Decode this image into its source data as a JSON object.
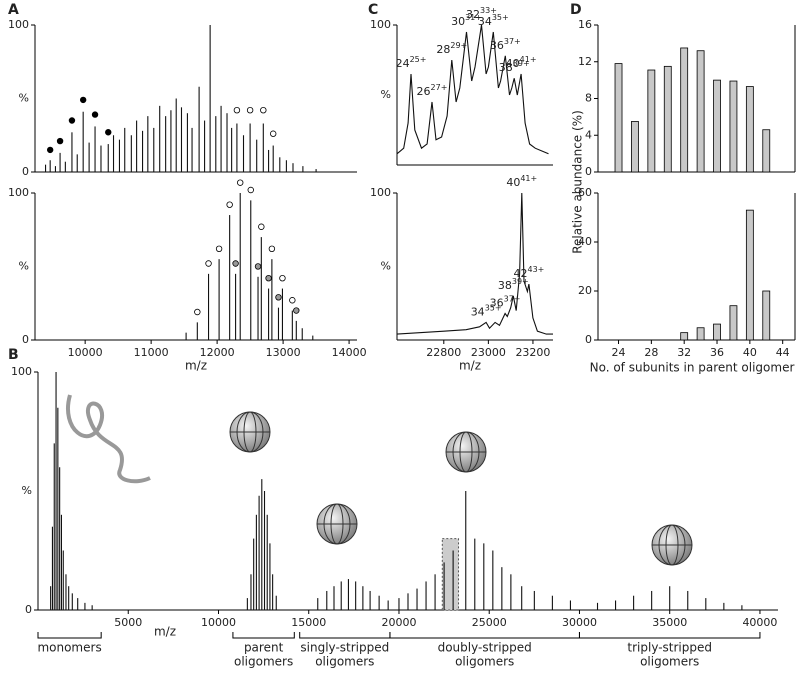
{
  "chart_data": [
    {
      "type": "spectrum",
      "panel": "A",
      "ylabel": "%",
      "xlim": [
        9240,
        14120
      ],
      "ylim": [
        0,
        100
      ],
      "yticks": [
        0,
        100
      ],
      "x": [
        9400,
        9470,
        9550,
        9620,
        9700,
        9800,
        9880,
        9970,
        10060,
        10150,
        10240,
        10350,
        10430,
        10520,
        10600,
        10700,
        10780,
        10870,
        10950,
        11040,
        11130,
        11220,
        11300,
        11380,
        11460,
        11550,
        11620,
        11727,
        11810,
        11894,
        11980,
        12060,
        12150,
        12220,
        12300,
        12400,
        12500,
        12600,
        12700,
        12780,
        12850,
        12950,
        13050,
        13150,
        13300,
        13500
      ],
      "values": [
        5,
        8,
        4,
        13,
        7,
        27,
        12,
        41,
        20,
        31,
        18,
        19,
        25,
        22,
        30,
        25,
        35,
        28,
        38,
        30,
        45,
        38,
        42,
        50,
        44,
        40,
        30,
        58,
        35,
        100,
        38,
        45,
        40,
        30,
        33,
        25,
        33,
        22,
        33,
        15,
        18,
        10,
        8,
        6,
        4,
        2
      ],
      "markers": [
        {
          "color": "#000000",
          "x": [
            9470,
            9620,
            9800,
            9970,
            10150,
            10350
          ],
          "values": [
            13,
            19,
            33,
            47,
            37,
            25
          ]
        },
        {
          "color": "#ffffff",
          "x": [
            12300,
            12500,
            12700,
            12850
          ],
          "values": [
            40,
            40,
            40,
            24
          ]
        }
      ]
    },
    {
      "type": "spectrum",
      "ylabel": "%",
      "xlabel": "m/z",
      "xlim": [
        9240,
        14120
      ],
      "ylim": [
        0,
        100
      ],
      "yticks": [
        0,
        100
      ],
      "xticks": [
        10000,
        11000,
        12000,
        13000,
        14000
      ],
      "x": [
        11530,
        11700,
        11870,
        12030,
        12190,
        12280,
        12350,
        12510,
        12620,
        12670,
        12780,
        12830,
        12930,
        12990,
        13140,
        13200,
        13290,
        13450
      ],
      "values": [
        5,
        12,
        45,
        55,
        85,
        45,
        100,
        95,
        43,
        70,
        35,
        55,
        22,
        35,
        20,
        13,
        8,
        3
      ],
      "markers": [
        {
          "color": "#ffffff",
          "x": [
            11700,
            11870,
            12030,
            12190,
            12350,
            12510,
            12670,
            12830,
            12990,
            13140
          ],
          "values": [
            17,
            50,
            60,
            90,
            105,
            100,
            75,
            60,
            40,
            25
          ]
        },
        {
          "color": "#999999",
          "x": [
            12280,
            12620,
            12780,
            12930,
            13200
          ],
          "values": [
            50,
            48,
            40,
            27,
            18
          ]
        }
      ]
    },
    {
      "type": "line",
      "panel": "C",
      "ylabel": "%",
      "xlim": [
        22590,
        23290
      ],
      "ylim": [
        0,
        100
      ],
      "yticks": [
        100
      ],
      "x": [
        22590,
        22620,
        22640,
        22653,
        22670,
        22700,
        22725,
        22747,
        22765,
        22790,
        22815,
        22836,
        22855,
        22872,
        22902,
        22925,
        22940,
        22969,
        22990,
        23000,
        23022,
        23045,
        23055,
        23076,
        23095,
        23105,
        23116,
        23130,
        23147,
        23165,
        23185,
        23210,
        23240,
        23270
      ],
      "values": [
        8,
        12,
        30,
        65,
        25,
        12,
        15,
        45,
        18,
        20,
        35,
        75,
        45,
        55,
        95,
        60,
        70,
        100,
        65,
        70,
        95,
        55,
        60,
        78,
        50,
        55,
        62,
        50,
        65,
        30,
        15,
        12,
        10,
        8
      ],
      "labels": [
        {
          "x": 22653,
          "y": 65,
          "base": "24",
          "sup": "25+"
        },
        {
          "x": 22747,
          "y": 45,
          "base": "26",
          "sup": "27+"
        },
        {
          "x": 22836,
          "y": 75,
          "base": "28",
          "sup": "29+"
        },
        {
          "x": 22902,
          "y": 95,
          "base": "30",
          "sup": "31+"
        },
        {
          "x": 22969,
          "y": 100,
          "base": "32",
          "sup": "33+"
        },
        {
          "x": 23022,
          "y": 95,
          "base": "34",
          "sup": "35+"
        },
        {
          "x": 23076,
          "y": 78,
          "base": "36",
          "sup": "37+"
        },
        {
          "x": 23116,
          "y": 62,
          "base": "38",
          "sup": "39+"
        },
        {
          "x": 23147,
          "y": 65,
          "base": "40",
          "sup": "41+"
        }
      ]
    },
    {
      "type": "line",
      "ylabel": "%",
      "xlabel": "m/z",
      "xlim": [
        22590,
        23290
      ],
      "ylim": [
        0,
        100
      ],
      "yticks": [
        100
      ],
      "xticks": [
        22800,
        23000,
        23200
      ],
      "x": [
        22590,
        22700,
        22800,
        22900,
        22960,
        22990,
        23005,
        23030,
        23050,
        23075,
        23085,
        23100,
        23112,
        23125,
        23140,
        23150,
        23160,
        23175,
        23182,
        23200,
        23220,
        23260,
        23290
      ],
      "values": [
        4,
        5,
        6,
        7,
        9,
        12,
        8,
        12,
        10,
        18,
        16,
        22,
        30,
        20,
        45,
        100,
        40,
        33,
        38,
        15,
        6,
        4,
        4
      ],
      "labels": [
        {
          "x": 22990,
          "y": 12,
          "base": "34",
          "sup": "35+"
        },
        {
          "x": 23075,
          "y": 18,
          "base": "36",
          "sup": "37+"
        },
        {
          "x": 23112,
          "y": 30,
          "base": "38",
          "sup": "39+"
        },
        {
          "x": 23150,
          "y": 100,
          "base": "40",
          "sup": "41+"
        },
        {
          "x": 23182,
          "y": 38,
          "base": "42",
          "sup": "43+"
        }
      ]
    },
    {
      "type": "bar",
      "panel": "D",
      "ylabel": "Relative abundance (%)",
      "color": "#c8c8c8",
      "xlim": [
        21.5,
        45.5
      ],
      "ylim": [
        0,
        16
      ],
      "yticks": [
        0,
        4,
        8,
        12,
        16
      ],
      "x": [
        24,
        26,
        28,
        30,
        32,
        34,
        36,
        38,
        40,
        42
      ],
      "values": [
        11.8,
        5.5,
        11.1,
        11.5,
        13.5,
        13.2,
        10,
        9.9,
        9.3,
        4.6
      ]
    },
    {
      "type": "bar",
      "xlabel": "No. of subunits in parent oligomer",
      "color": "#c8c8c8",
      "xlim": [
        21.5,
        45.5
      ],
      "ylim": [
        0,
        60
      ],
      "yticks": [
        0,
        20,
        40,
        60
      ],
      "xticks": [
        24,
        28,
        32,
        36,
        40,
        44
      ],
      "x": [
        24,
        26,
        28,
        30,
        32,
        34,
        36,
        38,
        40,
        42
      ],
      "values": [
        0,
        0,
        0,
        0,
        3,
        5,
        6.5,
        14,
        53,
        20
      ]
    },
    {
      "type": "spectrum",
      "panel": "B",
      "ylabel": "%",
      "xlabel": "m/z",
      "xlim": [
        0,
        41000
      ],
      "ylim": [
        0,
        100
      ],
      "yticks": [
        0,
        100
      ],
      "xticks": [
        5000,
        10000,
        15000,
        20000,
        25000,
        30000,
        35000,
        40000
      ],
      "x": [
        700,
        800,
        900,
        1000,
        1100,
        1200,
        1300,
        1400,
        1550,
        1700,
        1900,
        2200,
        2600,
        3000,
        11600,
        11800,
        11950,
        12100,
        12250,
        12400,
        12550,
        12700,
        12850,
        13000,
        13200,
        15500,
        16000,
        16400,
        16800,
        17200,
        17600,
        18000,
        18400,
        18900,
        19400,
        20000,
        20500,
        21000,
        21500,
        22000,
        22500,
        23000,
        23700,
        24200,
        24700,
        25200,
        25700,
        26200,
        26800,
        27500,
        28500,
        29500,
        31000,
        32000,
        33000,
        34000,
        35000,
        36000,
        37000,
        38000,
        39000
      ],
      "values": [
        10,
        35,
        70,
        100,
        85,
        60,
        40,
        25,
        15,
        10,
        7,
        5,
        3,
        2,
        5,
        15,
        30,
        40,
        48,
        55,
        50,
        40,
        28,
        15,
        6,
        5,
        8,
        10,
        12,
        13,
        12,
        10,
        8,
        6,
        4,
        5,
        7,
        9,
        12,
        15,
        20,
        25,
        50,
        30,
        28,
        25,
        18,
        15,
        10,
        8,
        6,
        4,
        3,
        4,
        6,
        8,
        10,
        8,
        5,
        3,
        2
      ],
      "highlight": {
        "xrange": [
          22400,
          23300
        ],
        "y": 30
      },
      "regions": [
        {
          "lines": [
            "monomers"
          ],
          "range": [
            0,
            3500
          ]
        },
        {
          "lines": [
            "parent",
            "oligomers"
          ],
          "range": [
            10800,
            14200
          ]
        },
        {
          "lines": [
            "singly-stripped",
            "oligomers"
          ],
          "range": [
            14500,
            19500
          ]
        },
        {
          "lines": [
            "doubly-stripped",
            "oligomers"
          ],
          "range": [
            19500,
            30000
          ]
        },
        {
          "lines": [
            "triply-stripped",
            "oligomers"
          ],
          "range": [
            30000,
            40000
          ]
        }
      ]
    }
  ]
}
